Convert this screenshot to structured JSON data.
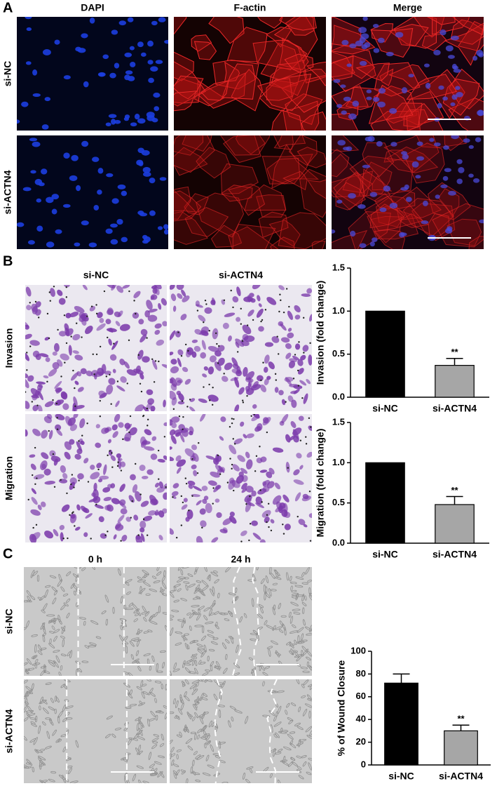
{
  "panels": {
    "A": {
      "label": "A",
      "columns": [
        "DAPI",
        "F-actin",
        "Merge"
      ],
      "rows": [
        "si-NC",
        "si-ACTN4"
      ]
    },
    "B": {
      "label": "B",
      "columns": [
        "si-NC",
        "si-ACTN4"
      ],
      "rows": [
        "Invasion",
        "Migration"
      ]
    },
    "C": {
      "label": "C",
      "columns": [
        "0 h",
        "24 h"
      ],
      "rows": [
        "si-NC",
        "si-ACTN4"
      ]
    }
  },
  "chart_data": [
    {
      "type": "bar",
      "y_label": "Invasion (fold change)",
      "categories": [
        "si-NC",
        "si-ACTN4"
      ],
      "values": [
        1.0,
        0.37
      ],
      "errors": [
        null,
        0.08
      ],
      "significance": [
        null,
        "**"
      ],
      "colors": [
        "#000000",
        "#a6a6a6"
      ],
      "ylim": [
        0,
        1.5
      ],
      "yticks": [
        {
          "value": 0,
          "label": "0.0"
        },
        0.5,
        {
          "value": 1,
          "label": "1.0"
        },
        1.5
      ]
    },
    {
      "type": "bar",
      "y_label": "Migration (fold change)",
      "categories": [
        "si-NC",
        "si-ACTN4"
      ],
      "values": [
        1.0,
        0.48
      ],
      "errors": [
        null,
        0.1
      ],
      "significance": [
        null,
        "**"
      ],
      "colors": [
        "#000000",
        "#a6a6a6"
      ],
      "ylim": [
        0,
        1.5
      ],
      "yticks": [
        {
          "value": 0,
          "label": "0.0"
        },
        0.5,
        {
          "value": 1,
          "label": "1.0"
        },
        1.5
      ]
    },
    {
      "type": "bar",
      "y_label": "% of Wound Closure",
      "categories": [
        "si-NC",
        "si-ACTN4"
      ],
      "values": [
        72,
        30
      ],
      "errors": [
        8,
        5
      ],
      "significance": [
        null,
        "**"
      ],
      "colors": [
        "#000000",
        "#a6a6a6"
      ],
      "ylim": [
        0,
        100
      ],
      "yticks": [
        0,
        20,
        40,
        60,
        80,
        100
      ]
    }
  ]
}
